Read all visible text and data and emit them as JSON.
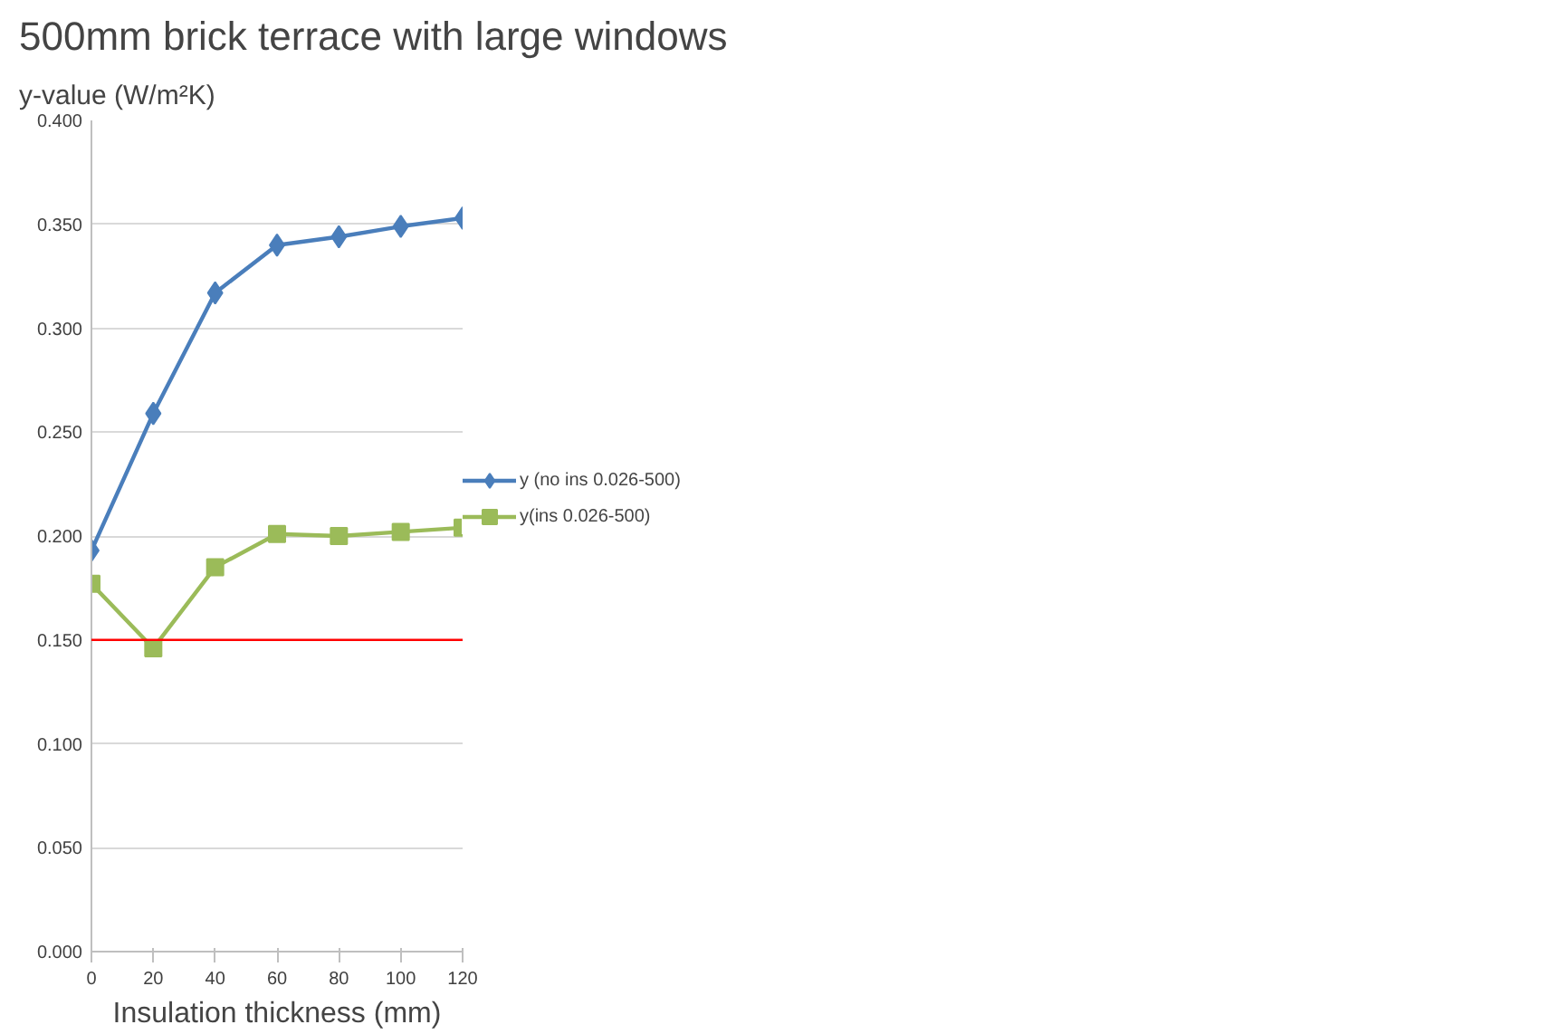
{
  "chart_data": {
    "type": "line",
    "title": "500mm brick terrace with large windows",
    "xlabel": "Insulation thickness (mm)",
    "ylabel": "y-value (W/m²K)",
    "x": [
      0,
      20,
      40,
      60,
      80,
      100,
      120
    ],
    "series": [
      {
        "name": "y (no ins 0.026-500)",
        "color": "#4a7ebb",
        "marker": "diamond",
        "values": [
          0.193,
          0.259,
          0.317,
          0.34,
          0.344,
          0.349,
          0.353
        ]
      },
      {
        "name": "y(ins 0.026-500)",
        "color": "#9bbb59",
        "marker": "square",
        "values": [
          0.177,
          0.146,
          0.185,
          0.201,
          0.2,
          0.202,
          0.204
        ]
      }
    ],
    "xlim": [
      0,
      120
    ],
    "xticks": [
      0,
      20,
      40,
      60,
      80,
      100,
      120
    ],
    "ylim": [
      0,
      0.4
    ],
    "yticks": [
      {
        "value": 0,
        "label": "0.000"
      },
      {
        "value": 0.05,
        "label": "0.050"
      },
      {
        "value": 0.1,
        "label": "0.100"
      },
      {
        "value": 0.15,
        "label": "0.150"
      },
      {
        "value": 0.2,
        "label": "0.200"
      },
      {
        "value": 0.25,
        "label": "0.250"
      },
      {
        "value": 0.3,
        "label": "0.300"
      },
      {
        "value": 0.35,
        "label": "0.350"
      },
      {
        "value": 0.4,
        "label": "0.400"
      }
    ],
    "ref_lines": [
      {
        "axis": "y",
        "value": 0.15,
        "label": null,
        "color": "#ff0000"
      }
    ],
    "grid": "y",
    "legend": "right"
  }
}
